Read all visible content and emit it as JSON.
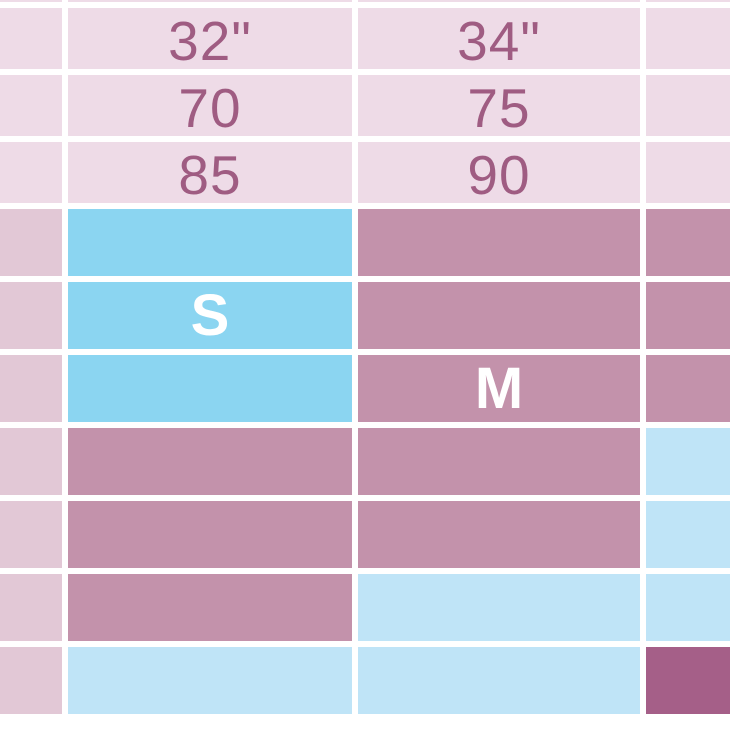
{
  "colors": {
    "headerPink": "#eedbe7",
    "rose": "#e2c8d6",
    "skyBlue": "#8bd5f1",
    "paleBlue": "#bfe4f7",
    "mauve": "#c392ab",
    "magenta": "#a55f88",
    "textPlum": "#9f5c82",
    "labelWhite": "#ffffff",
    "background": "#ffffff"
  },
  "chart_data": {
    "type": "table",
    "title": "",
    "column_headers": [
      {
        "row": "bust-inches",
        "values": [
          "32\"",
          "34\""
        ]
      },
      {
        "row": "band-number",
        "values": [
          "70",
          "75"
        ]
      },
      {
        "row": "bust-cm",
        "values": [
          "85",
          "90"
        ]
      }
    ],
    "size_labels": [
      {
        "label": "S",
        "column": "32\"",
        "highlight": "skyBlue"
      },
      {
        "label": "M",
        "column": "34\"",
        "highlight": "mauve"
      }
    ],
    "layout": "cropped size-chart grid; narrow left band column, two wide size columns, right column cut off at edge"
  },
  "grid": {
    "rows": [
      {
        "name": "top-sliver",
        "cells": [
          {
            "c": "headerPink"
          },
          {
            "c": "headerPink"
          },
          {
            "c": "headerPink"
          },
          {
            "c": "headerPink"
          }
        ]
      },
      {
        "name": "bust-inches",
        "cells": [
          {
            "c": "headerPink"
          },
          {
            "c": "headerPink",
            "t": "32\"",
            "s": "num"
          },
          {
            "c": "headerPink",
            "t": "34\"",
            "s": "num"
          },
          {
            "c": "headerPink"
          }
        ]
      },
      {
        "name": "band-number",
        "cells": [
          {
            "c": "headerPink"
          },
          {
            "c": "headerPink",
            "t": "70",
            "s": "num"
          },
          {
            "c": "headerPink",
            "t": "75",
            "s": "num"
          },
          {
            "c": "headerPink"
          }
        ]
      },
      {
        "name": "bust-cm",
        "cells": [
          {
            "c": "headerPink"
          },
          {
            "c": "headerPink",
            "t": "85",
            "s": "num"
          },
          {
            "c": "headerPink",
            "t": "90",
            "s": "num"
          },
          {
            "c": "headerPink"
          }
        ]
      },
      {
        "name": "body-row-1",
        "cells": [
          {
            "c": "rose"
          },
          {
            "c": "skyBlue"
          },
          {
            "c": "mauve"
          },
          {
            "c": "mauve"
          }
        ]
      },
      {
        "name": "body-row-2",
        "cells": [
          {
            "c": "rose"
          },
          {
            "c": "skyBlue",
            "t": "S",
            "s": "size"
          },
          {
            "c": "mauve"
          },
          {
            "c": "mauve"
          }
        ]
      },
      {
        "name": "body-row-3",
        "cells": [
          {
            "c": "rose"
          },
          {
            "c": "skyBlue"
          },
          {
            "c": "mauve",
            "t": "M",
            "s": "size"
          },
          {
            "c": "mauve"
          }
        ]
      },
      {
        "name": "body-row-4",
        "cells": [
          {
            "c": "rose"
          },
          {
            "c": "mauve"
          },
          {
            "c": "mauve"
          },
          {
            "c": "paleBlue"
          }
        ]
      },
      {
        "name": "body-row-5",
        "cells": [
          {
            "c": "rose"
          },
          {
            "c": "mauve"
          },
          {
            "c": "mauve"
          },
          {
            "c": "paleBlue"
          }
        ]
      },
      {
        "name": "body-row-6",
        "cells": [
          {
            "c": "rose"
          },
          {
            "c": "mauve"
          },
          {
            "c": "paleBlue"
          },
          {
            "c": "paleBlue"
          }
        ]
      },
      {
        "name": "body-row-7",
        "cells": [
          {
            "c": "rose"
          },
          {
            "c": "paleBlue"
          },
          {
            "c": "paleBlue"
          },
          {
            "c": "magenta"
          }
        ]
      }
    ]
  }
}
